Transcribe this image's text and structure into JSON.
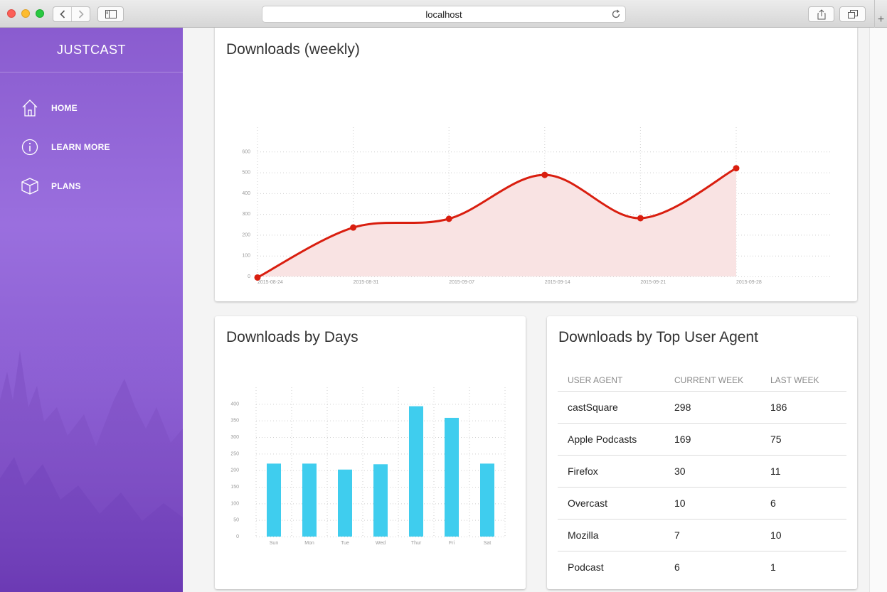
{
  "browser": {
    "url": "localhost"
  },
  "sidebar": {
    "brand": "JUSTCAST",
    "items": [
      {
        "label": "HOME",
        "icon": "home-icon"
      },
      {
        "label": "LEARN MORE",
        "icon": "info-icon"
      },
      {
        "label": "PLANS",
        "icon": "box-icon"
      }
    ]
  },
  "weekly": {
    "title": "Downloads (weekly)"
  },
  "days": {
    "title": "Downloads by Days"
  },
  "agents": {
    "title": "Downloads by Top User Agent",
    "headers": [
      "USER AGENT",
      "CURRENT WEEK",
      "LAST WEEK"
    ],
    "rows": [
      [
        "castSquare",
        "298",
        "186"
      ],
      [
        "Apple Podcasts",
        "169",
        "75"
      ],
      [
        "Firefox",
        "30",
        "11"
      ],
      [
        "Overcast",
        "10",
        "6"
      ],
      [
        "Mozilla",
        "7",
        "10"
      ],
      [
        "Podcast",
        "6",
        "1"
      ]
    ]
  },
  "colors": {
    "line": "#d91e0f",
    "area": "#f9e3e3",
    "bar": "#3fcdee",
    "sidebar": "#8a5ccf"
  },
  "chart_data": [
    {
      "type": "area",
      "title": "Downloads (weekly)",
      "x": [
        "2015-08-24",
        "2015-08-31",
        "2015-09-07",
        "2015-09-14",
        "2015-09-21",
        "2015-09-28"
      ],
      "series": [
        {
          "values": [
            -5,
            235,
            277,
            488,
            280,
            520
          ]
        }
      ],
      "yticks": [
        0,
        100,
        200,
        300,
        400,
        500,
        600
      ],
      "ylim": [
        0,
        700
      ],
      "grid": true
    },
    {
      "type": "bar",
      "title": "Downloads by Days",
      "categories": [
        "Sun",
        "Mon",
        "Tue",
        "Wed",
        "Thur",
        "Fri",
        "Sat"
      ],
      "values": [
        220,
        220,
        202,
        218,
        393,
        358,
        220
      ],
      "yticks": [
        0,
        50,
        100,
        150,
        200,
        250,
        300,
        350,
        400
      ],
      "ylim": [
        0,
        450
      ],
      "grid": true
    }
  ]
}
